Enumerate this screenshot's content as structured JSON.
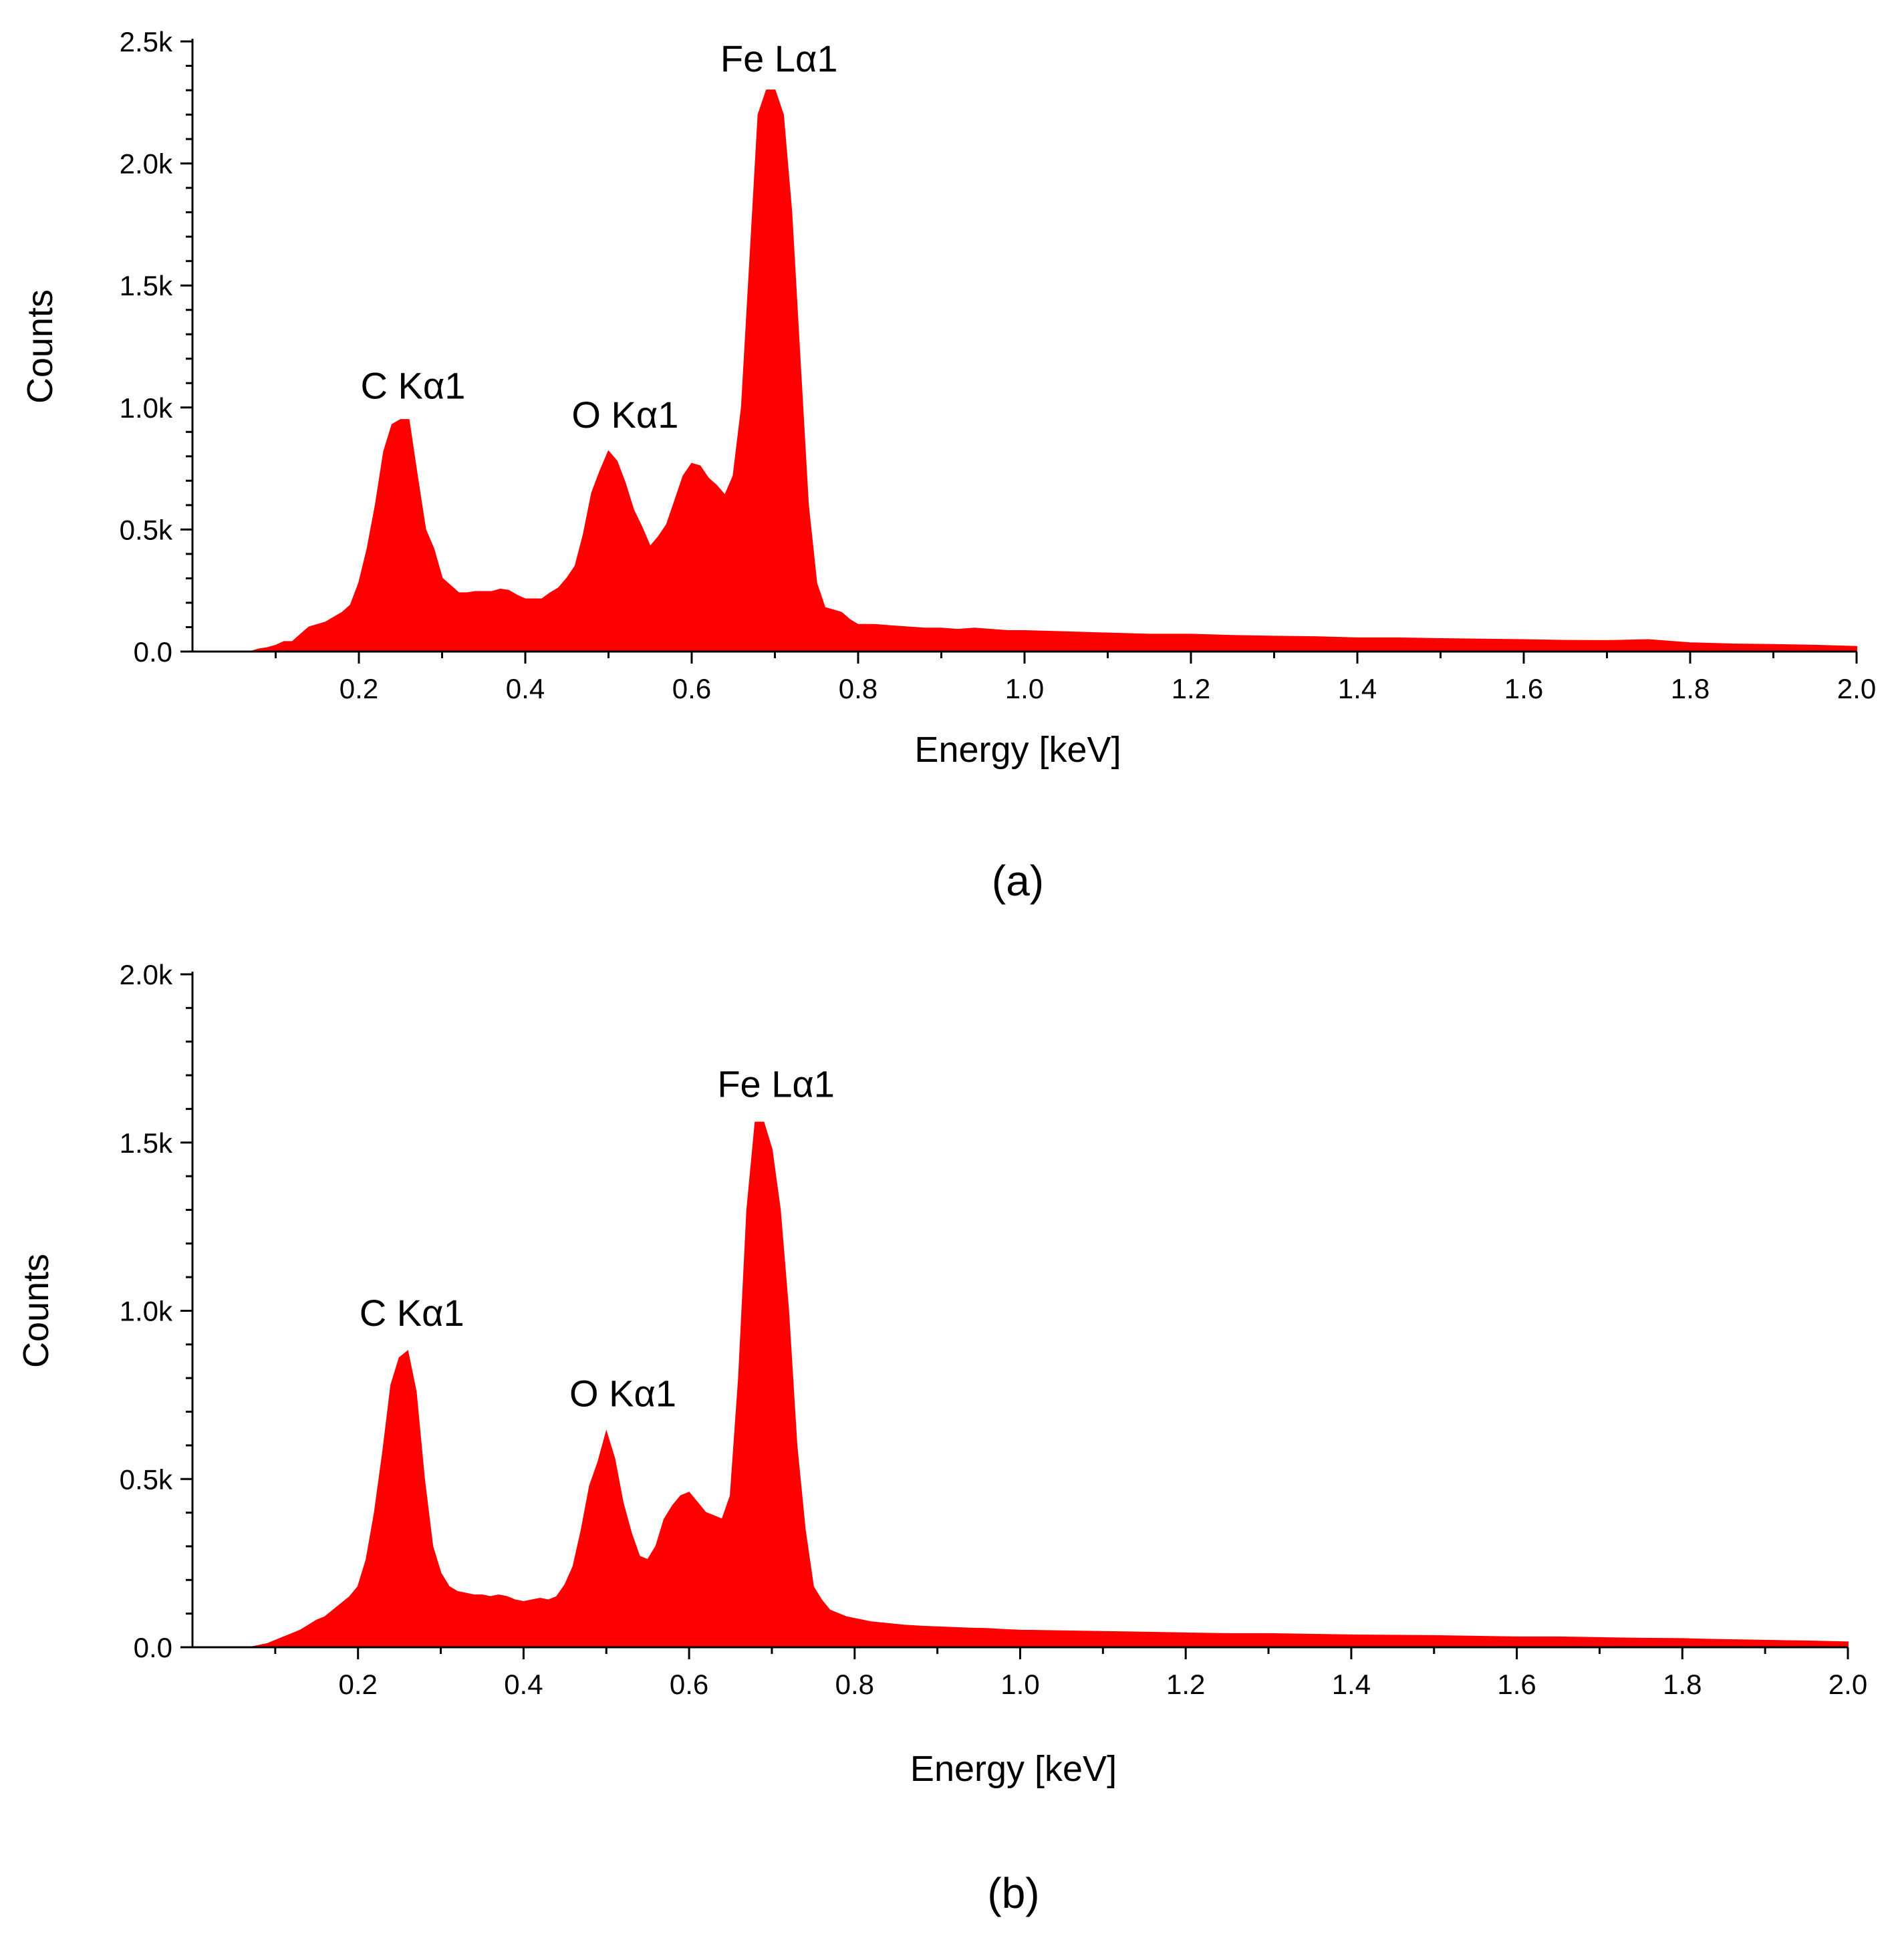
{
  "chart_data": [
    {
      "panel": "(a)",
      "type": "area",
      "xlabel": "Energy [keV]",
      "ylabel": "Counts",
      "xlim": [
        0.0,
        2.0
      ],
      "ylim": [
        0,
        2500
      ],
      "xticks": [
        "0.2",
        "0.4",
        "0.6",
        "0.8",
        "1.0",
        "1.2",
        "1.4",
        "1.6",
        "1.8",
        "2.0"
      ],
      "xtick_values": [
        0.2,
        0.4,
        0.6,
        0.8,
        1.0,
        1.2,
        1.4,
        1.6,
        1.8,
        2.0
      ],
      "yticks": [
        "0.0",
        "0.5k",
        "1.0k",
        "1.5k",
        "2.0k",
        "2.5k"
      ],
      "ytick_values": [
        0,
        500,
        1000,
        1500,
        2000,
        2500
      ],
      "fill_color": "#ff0000",
      "grid": false,
      "annotations": [
        {
          "text": "C Kα1",
          "x": 0.265,
          "y": 960
        },
        {
          "text": "O Kα1",
          "x": 0.52,
          "y": 840
        },
        {
          "text": "Fe Lα1",
          "x": 0.705,
          "y": 2300
        }
      ],
      "series": [
        {
          "x": [
            0.07,
            0.08,
            0.09,
            0.1,
            0.11,
            0.12,
            0.13,
            0.14,
            0.15,
            0.16,
            0.17,
            0.18,
            0.19,
            0.2,
            0.21,
            0.22,
            0.23,
            0.24,
            0.25,
            0.26,
            0.27,
            0.28,
            0.29,
            0.3,
            0.31,
            0.32,
            0.33,
            0.34,
            0.35,
            0.36,
            0.37,
            0.38,
            0.39,
            0.4,
            0.41,
            0.42,
            0.43,
            0.44,
            0.45,
            0.46,
            0.47,
            0.48,
            0.49,
            0.5,
            0.51,
            0.52,
            0.53,
            0.54,
            0.55,
            0.56,
            0.57,
            0.58,
            0.59,
            0.6,
            0.61,
            0.62,
            0.63,
            0.64,
            0.65,
            0.66,
            0.67,
            0.68,
            0.69,
            0.7,
            0.71,
            0.72,
            0.73,
            0.74,
            0.75,
            0.76,
            0.77,
            0.78,
            0.79,
            0.8,
            0.82,
            0.84,
            0.86,
            0.88,
            0.9,
            0.92,
            0.94,
            0.96,
            0.98,
            1.0,
            1.05,
            1.1,
            1.15,
            1.2,
            1.25,
            1.3,
            1.35,
            1.4,
            1.45,
            1.5,
            1.55,
            1.6,
            1.65,
            1.7,
            1.75,
            1.8,
            1.85,
            1.9,
            1.95,
            2.0
          ],
          "y": [
            0,
            10,
            15,
            25,
            40,
            40,
            70,
            100,
            110,
            120,
            140,
            160,
            190,
            280,
            420,
            600,
            820,
            930,
            950,
            950,
            720,
            500,
            420,
            300,
            270,
            240,
            240,
            245,
            245,
            245,
            255,
            250,
            230,
            215,
            215,
            215,
            240,
            260,
            300,
            350,
            480,
            650,
            740,
            820,
            780,
            690,
            580,
            510,
            430,
            470,
            520,
            620,
            720,
            770,
            760,
            710,
            680,
            640,
            720,
            1000,
            1600,
            2200,
            2300,
            2300,
            2200,
            1800,
            1200,
            600,
            280,
            180,
            170,
            160,
            130,
            110,
            110,
            105,
            100,
            95,
            95,
            90,
            95,
            90,
            85,
            85,
            80,
            75,
            70,
            70,
            65,
            62,
            60,
            55,
            55,
            52,
            50,
            48,
            45,
            44,
            48,
            35,
            30,
            28,
            25,
            20
          ]
        }
      ]
    },
    {
      "panel": "(b)",
      "type": "area",
      "xlabel": "Energy [keV]",
      "ylabel": "Counts",
      "xlim": [
        0.0,
        2.0
      ],
      "ylim": [
        0,
        2000
      ],
      "xticks": [
        "0.2",
        "0.4",
        "0.6",
        "0.8",
        "1.0",
        "1.2",
        "1.4",
        "1.6",
        "1.8",
        "2.0"
      ],
      "xtick_values": [
        0.2,
        0.4,
        0.6,
        0.8,
        1.0,
        1.2,
        1.4,
        1.6,
        1.8,
        2.0
      ],
      "yticks": [
        "0.0",
        "0.5k",
        "1.0k",
        "1.5k",
        "2.0k"
      ],
      "ytick_values": [
        0,
        500,
        1000,
        1500,
        2000
      ],
      "fill_color": "#ff0000",
      "grid": false,
      "annotations": [
        {
          "text": "C Kα1",
          "x": 0.265,
          "y": 900
        },
        {
          "text": "O Kα1",
          "x": 0.52,
          "y": 660
        },
        {
          "text": "Fe Lα1",
          "x": 0.705,
          "y": 1580
        }
      ],
      "series": [
        {
          "x": [
            0.07,
            0.08,
            0.09,
            0.1,
            0.11,
            0.12,
            0.13,
            0.14,
            0.15,
            0.16,
            0.17,
            0.18,
            0.19,
            0.2,
            0.21,
            0.22,
            0.23,
            0.24,
            0.25,
            0.26,
            0.27,
            0.28,
            0.29,
            0.3,
            0.31,
            0.32,
            0.33,
            0.34,
            0.35,
            0.36,
            0.37,
            0.38,
            0.39,
            0.4,
            0.41,
            0.42,
            0.43,
            0.44,
            0.45,
            0.46,
            0.47,
            0.48,
            0.49,
            0.5,
            0.51,
            0.52,
            0.53,
            0.54,
            0.55,
            0.56,
            0.57,
            0.58,
            0.59,
            0.6,
            0.61,
            0.62,
            0.63,
            0.64,
            0.65,
            0.66,
            0.67,
            0.68,
            0.69,
            0.7,
            0.71,
            0.72,
            0.73,
            0.74,
            0.75,
            0.76,
            0.77,
            0.78,
            0.79,
            0.8,
            0.82,
            0.84,
            0.86,
            0.88,
            0.9,
            0.92,
            0.94,
            0.96,
            0.98,
            1.0,
            1.05,
            1.1,
            1.15,
            1.2,
            1.25,
            1.3,
            1.35,
            1.4,
            1.45,
            1.5,
            1.55,
            1.6,
            1.65,
            1.7,
            1.75,
            1.8,
            1.85,
            1.9,
            1.95,
            2.0
          ],
          "y": [
            0,
            5,
            10,
            20,
            30,
            40,
            50,
            65,
            80,
            90,
            110,
            130,
            150,
            180,
            260,
            400,
            580,
            780,
            860,
            880,
            760,
            500,
            300,
            220,
            180,
            165,
            160,
            155,
            155,
            150,
            155,
            150,
            140,
            135,
            140,
            145,
            140,
            150,
            185,
            240,
            350,
            480,
            550,
            640,
            560,
            430,
            340,
            270,
            260,
            300,
            380,
            420,
            450,
            460,
            430,
            400,
            390,
            380,
            450,
            800,
            1300,
            1560,
            1560,
            1480,
            1300,
            1000,
            600,
            350,
            180,
            140,
            110,
            100,
            90,
            85,
            75,
            70,
            65,
            62,
            60,
            58,
            56,
            55,
            52,
            50,
            48,
            46,
            44,
            42,
            40,
            40,
            38,
            36,
            35,
            34,
            32,
            30,
            30,
            28,
            26,
            25,
            22,
            20,
            18,
            15
          ]
        }
      ]
    }
  ]
}
